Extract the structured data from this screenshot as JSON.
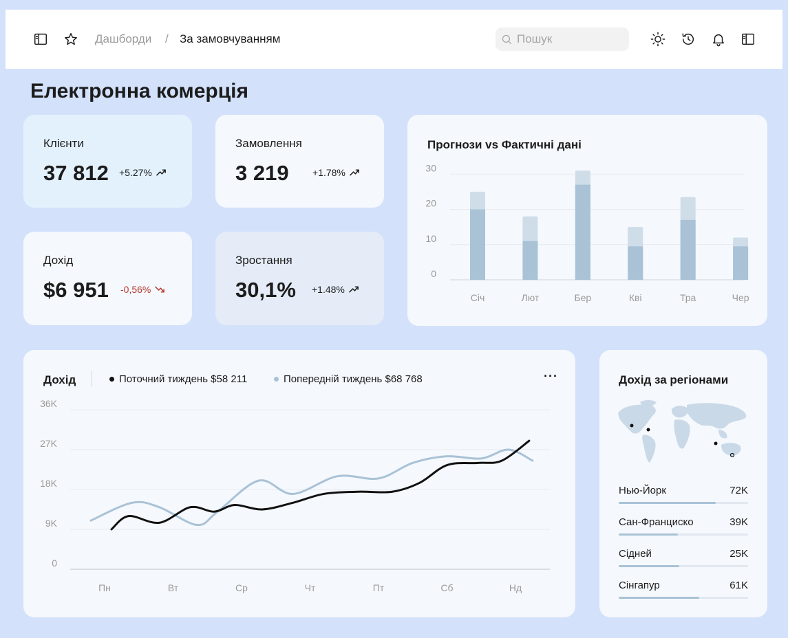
{
  "header": {
    "breadcrumb_root": "Дашборди",
    "breadcrumb_separator": "/",
    "breadcrumb_current": "За замовчуванням",
    "search_placeholder": "Пошук",
    "icons": [
      "sidebar-icon",
      "star-icon",
      "search-icon",
      "sun-icon",
      "history-icon",
      "bell-icon",
      "panel-icon"
    ]
  },
  "page": {
    "title": "Електронна комерція"
  },
  "kpis": [
    {
      "label": "Клієнти",
      "value": "37 812",
      "delta": "+5.27%",
      "trend": "up"
    },
    {
      "label": "Замовлення",
      "value": "3 219",
      "delta": "+1.78%",
      "trend": "up"
    },
    {
      "label": "Дохід",
      "value": "$6 951",
      "delta": "-0,56%",
      "trend": "down"
    },
    {
      "label": "Зростання",
      "value": "30,1%",
      "delta": "+1.48%",
      "trend": "up"
    }
  ],
  "colors": {
    "background": "#d3e1fb",
    "card": "#f5f8fc",
    "card_highlight": "#e3f1fd",
    "card_muted": "#e5ecf7",
    "bar_actual": "#a9c2d6",
    "bar_projection": "#cfdde9",
    "line_current": "#111111",
    "line_previous": "#a9c2d6",
    "negative": "#b33a2e"
  },
  "forecast_card": {
    "title": "Прогнози vs Фактичні дані"
  },
  "revenue_card": {
    "title": "Дохід",
    "legend_current": "Поточний тиждень $58 211",
    "legend_previous": "Попередній тиждень $68 768",
    "more_label": "···"
  },
  "regions_card": {
    "title": "Дохід за регіонами",
    "regions": [
      {
        "name": "Нью-Йорк",
        "value": "72K",
        "share": 0.75
      },
      {
        "name": "Сан-Франциско",
        "value": "39K",
        "share": 0.46
      },
      {
        "name": "Сідней",
        "value": "25K",
        "share": 0.47
      },
      {
        "name": "Сінгапур",
        "value": "61K",
        "share": 0.62
      }
    ]
  },
  "chart_data": [
    {
      "type": "bar",
      "categories": [
        "Січ",
        "Лют",
        "Бер",
        "Кві",
        "Тра",
        "Чер"
      ],
      "series": [
        {
          "values": [
            20,
            11,
            27,
            9.5,
            17,
            9.5
          ]
        },
        {
          "values": [
            25,
            18,
            31,
            15,
            23.5,
            12
          ]
        }
      ],
      "title": "Прогнози vs Фактичні дані",
      "yticks": [
        0,
        10,
        20,
        30
      ],
      "ylim": [
        0,
        32
      ],
      "stacked": "overlay",
      "grid": true
    },
    {
      "type": "line",
      "x": [
        "Пн",
        "Вт",
        "Ср",
        "Чт",
        "Пт",
        "Сб",
        "Нд"
      ],
      "yticks": [
        "0",
        "9K",
        "18K",
        "27K",
        "36K"
      ],
      "ytick_values": [
        0,
        9000,
        18000,
        27000,
        36000
      ],
      "ylim": [
        0,
        36000
      ],
      "grid": true,
      "series": [
        {
          "name": "Поточний тиждень $58 211",
          "points": [
            [
              0.1,
              9000
            ],
            [
              0.35,
              12000
            ],
            [
              0.8,
              10500
            ],
            [
              1.25,
              14000
            ],
            [
              1.6,
              13000
            ],
            [
              1.9,
              14500
            ],
            [
              2.3,
              13500
            ],
            [
              2.75,
              15000
            ],
            [
              3.2,
              17000
            ],
            [
              3.7,
              17500
            ],
            [
              4.2,
              17500
            ],
            [
              4.6,
              19500
            ],
            [
              5.0,
              23500
            ],
            [
              5.45,
              24000
            ],
            [
              5.8,
              24500
            ],
            [
              6.2,
              29000
            ]
          ]
        },
        {
          "name": "Попередній тиждень $68 768",
          "points": [
            [
              -0.2,
              11000
            ],
            [
              0.4,
              15000
            ],
            [
              0.8,
              14000
            ],
            [
              1.35,
              10000
            ],
            [
              1.65,
              13000
            ],
            [
              2.25,
              20000
            ],
            [
              2.75,
              17000
            ],
            [
              3.4,
              21000
            ],
            [
              4.0,
              20500
            ],
            [
              4.5,
              24000
            ],
            [
              5.0,
              25500
            ],
            [
              5.5,
              25000
            ],
            [
              5.9,
              27000
            ],
            [
              6.25,
              24500
            ]
          ]
        }
      ]
    }
  ]
}
